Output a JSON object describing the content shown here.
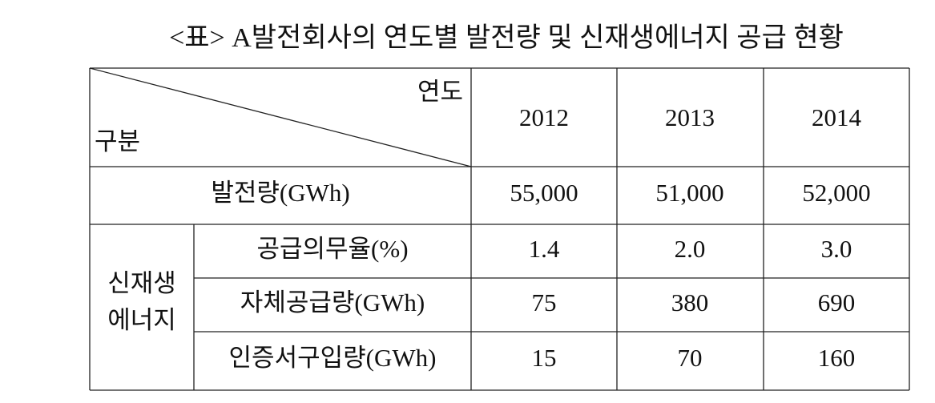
{
  "title": "<표> A발전회사의 연도별 발전량 및 신재생에너지 공급 현황",
  "table": {
    "corner": {
      "column_header": "연도",
      "row_header": "구분"
    },
    "columns": [
      "2012",
      "2013",
      "2014"
    ],
    "rows": [
      {
        "label": "발전량(GWh)",
        "values": [
          "55,000",
          "51,000",
          "52,000"
        ]
      }
    ],
    "group": {
      "label_lines": [
        "신재생",
        "에너지"
      ],
      "rows": [
        {
          "label": "공급의무율(%)",
          "values": [
            "1.4",
            "2.0",
            "3.0"
          ]
        },
        {
          "label": "자체공급량(GWh)",
          "values": [
            "75",
            "380",
            "690"
          ]
        },
        {
          "label": "인증서구입량(GWh)",
          "values": [
            "15",
            "70",
            "160"
          ]
        }
      ]
    }
  }
}
